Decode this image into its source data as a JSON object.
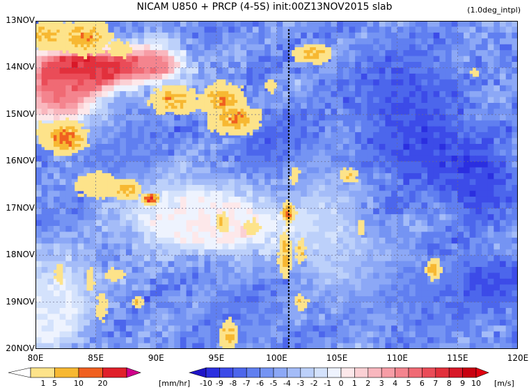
{
  "chart_data": {
    "type": "heatmap",
    "title": "NICAM    U850  +  PRCP (4-5S)  init:00Z13NOV2015  slab",
    "subtitle": "(1.0deg_intpl)",
    "xlabel": "",
    "ylabel": "",
    "x_ticks": [
      "80E",
      "85E",
      "90E",
      "95E",
      "100E",
      "105E",
      "110E",
      "115E",
      "120E"
    ],
    "x_range": [
      80,
      120
    ],
    "y_ticks": [
      "13NOV",
      "14NOV",
      "15NOV",
      "16NOV",
      "17NOV",
      "18NOV",
      "19NOV",
      "20NOV"
    ],
    "y_range_days": [
      13,
      20
    ],
    "grid": true,
    "reference_line_lon": 101,
    "u850": {
      "units": "[m/s]",
      "levels": [
        -10,
        -9,
        -8,
        -7,
        -6,
        -5,
        -4,
        -3,
        -2,
        -1,
        0,
        1,
        2,
        3,
        4,
        5,
        6,
        7,
        8,
        9,
        10
      ],
      "colors": [
        "#1e14c8",
        "#2b2fe0",
        "#3c4be8",
        "#4c66ec",
        "#607ff0",
        "#7594f3",
        "#8ca8f6",
        "#a4bcf8",
        "#bcd0fa",
        "#d4e2fc",
        "#eef3fe",
        "#fde8ea",
        "#fbd0d4",
        "#f9b7be",
        "#f79da6",
        "#f4848e",
        "#f06a74",
        "#ea4c58",
        "#e2303c",
        "#d81828",
        "#c80010"
      ],
      "label_text": [
        "-10",
        "-9",
        "-8",
        "-7",
        "-6",
        "-5",
        "-4",
        "-3",
        "-2",
        "-1",
        "0",
        "1",
        "2",
        "3",
        "4",
        "5",
        "6",
        "7",
        "8",
        "9",
        "10"
      ],
      "blobs": [
        {
          "lon": 84.5,
          "day": 14.0,
          "rl": 4.5,
          "rd": 0.45,
          "v": 9
        },
        {
          "lon": 82,
          "day": 14.6,
          "rl": 3.5,
          "rd": 0.7,
          "v": 5
        },
        {
          "lon": 90,
          "day": 13.9,
          "rl": 2.5,
          "rd": 0.4,
          "v": 4
        },
        {
          "lon": 87,
          "day": 15.9,
          "rl": 4,
          "rd": 0.9,
          "v": -6
        },
        {
          "lon": 96,
          "day": 17.4,
          "rl": 6,
          "rd": 0.6,
          "v": 1
        },
        {
          "lon": 92,
          "day": 17.0,
          "rl": 5,
          "rd": 0.7,
          "v": 0
        },
        {
          "lon": 82,
          "day": 18.7,
          "rl": 3.5,
          "rd": 0.9,
          "v": -1
        },
        {
          "lon": 81,
          "day": 19.5,
          "rl": 2.5,
          "rd": 0.6,
          "v": 0
        },
        {
          "lon": 104,
          "day": 17.1,
          "rl": 3,
          "rd": 1.0,
          "v": -2
        },
        {
          "lon": 106,
          "day": 18.3,
          "rl": 4,
          "rd": 0.7,
          "v": -3
        },
        {
          "lon": 112,
          "day": 15.6,
          "rl": 5,
          "rd": 1.0,
          "v": -8
        },
        {
          "lon": 117,
          "day": 16.5,
          "rl": 3,
          "rd": 0.7,
          "v": -8
        },
        {
          "lon": 110,
          "day": 14.2,
          "rl": 4,
          "rd": 0.8,
          "v": -7
        },
        {
          "lon": 118,
          "day": 18.6,
          "rl": 3,
          "rd": 0.6,
          "v": -8
        },
        {
          "lon": 97,
          "day": 19.3,
          "rl": 4,
          "rd": 0.6,
          "v": -6
        },
        {
          "lon": 100,
          "day": 15.5,
          "rl": 3,
          "rd": 0.7,
          "v": -7
        },
        {
          "lon": 112,
          "day": 18.8,
          "rl": 4,
          "rd": 0.8,
          "v": -6
        }
      ],
      "background": -5
    },
    "precipitation": {
      "units": "[mm/hr]",
      "levels": [
        1,
        5,
        10,
        20
      ],
      "colors": [
        "#fde38a",
        "#f7b832",
        "#f06020",
        "#e0202a",
        "#d0008a"
      ],
      "label_text": [
        "1",
        "5",
        "10",
        "20"
      ],
      "patches": [
        {
          "lon": 81,
          "day": 13.3,
          "rl": 1.5,
          "rd": 0.3,
          "v": 8
        },
        {
          "lon": 84,
          "day": 13.35,
          "rl": 2,
          "rd": 0.35,
          "v": 9
        },
        {
          "lon": 87,
          "day": 13.6,
          "rl": 1,
          "rd": 0.2,
          "v": 4
        },
        {
          "lon": 91.5,
          "day": 14.7,
          "rl": 2,
          "rd": 0.3,
          "v": 6
        },
        {
          "lon": 95.5,
          "day": 14.7,
          "rl": 1.8,
          "rd": 0.35,
          "v": 8
        },
        {
          "lon": 96.5,
          "day": 15.1,
          "rl": 2,
          "rd": 0.3,
          "v": 9
        },
        {
          "lon": 99.5,
          "day": 14.4,
          "rl": 0.6,
          "rd": 0.2,
          "v": 2
        },
        {
          "lon": 82.5,
          "day": 15.5,
          "rl": 1.5,
          "rd": 0.3,
          "v": 14
        },
        {
          "lon": 80.5,
          "day": 15.4,
          "rl": 0.6,
          "rd": 0.3,
          "v": 3
        },
        {
          "lon": 85,
          "day": 16.5,
          "rl": 2,
          "rd": 0.3,
          "v": 4
        },
        {
          "lon": 87.5,
          "day": 16.6,
          "rl": 1.2,
          "rd": 0.2,
          "v": 8
        },
        {
          "lon": 89.5,
          "day": 16.8,
          "rl": 0.6,
          "rd": 0.1,
          "v": 25
        },
        {
          "lon": 103,
          "day": 13.7,
          "rl": 1.5,
          "rd": 0.2,
          "v": 7
        },
        {
          "lon": 106,
          "day": 16.3,
          "rl": 0.8,
          "rd": 0.15,
          "v": 5
        },
        {
          "lon": 98,
          "day": 17.4,
          "rl": 0.8,
          "rd": 0.2,
          "v": 3
        },
        {
          "lon": 95.5,
          "day": 17.3,
          "rl": 0.6,
          "rd": 0.2,
          "v": 6
        },
        {
          "lon": 101,
          "day": 17.1,
          "rl": 0.5,
          "rd": 0.2,
          "v": 12
        },
        {
          "lon": 100.7,
          "day": 18.0,
          "rl": 0.5,
          "rd": 0.45,
          "v": 8
        },
        {
          "lon": 102,
          "day": 17.9,
          "rl": 0.4,
          "rd": 0.3,
          "v": 5
        },
        {
          "lon": 101.5,
          "day": 16.3,
          "rl": 0.4,
          "rd": 0.2,
          "v": 4
        },
        {
          "lon": 96,
          "day": 19.7,
          "rl": 0.7,
          "rd": 0.3,
          "v": 8
        },
        {
          "lon": 84.5,
          "day": 18.5,
          "rl": 0.4,
          "rd": 0.25,
          "v": 4
        },
        {
          "lon": 86.5,
          "day": 18.4,
          "rl": 1,
          "rd": 0.15,
          "v": 3
        },
        {
          "lon": 85.5,
          "day": 19.1,
          "rl": 0.5,
          "rd": 0.4,
          "v": 3
        },
        {
          "lon": 88.5,
          "day": 19.0,
          "rl": 0.4,
          "rd": 0.1,
          "v": 10
        },
        {
          "lon": 102,
          "day": 19.0,
          "rl": 0.6,
          "rd": 0.15,
          "v": 5
        },
        {
          "lon": 107,
          "day": 17.4,
          "rl": 0.4,
          "rd": 0.2,
          "v": 3
        },
        {
          "lon": 113,
          "day": 18.3,
          "rl": 0.6,
          "rd": 0.2,
          "v": 9
        },
        {
          "lon": 116.5,
          "day": 14.1,
          "rl": 0.6,
          "rd": 0.1,
          "v": 3
        },
        {
          "lon": 82,
          "day": 18.4,
          "rl": 0.4,
          "rd": 0.25,
          "v": 4
        },
        {
          "lon": 91,
          "day": 14.6,
          "rl": 0.5,
          "rd": 0.2,
          "v": 12
        },
        {
          "lon": 97,
          "day": 15.0,
          "rl": 0.5,
          "rd": 0.15,
          "v": 12
        }
      ]
    }
  }
}
